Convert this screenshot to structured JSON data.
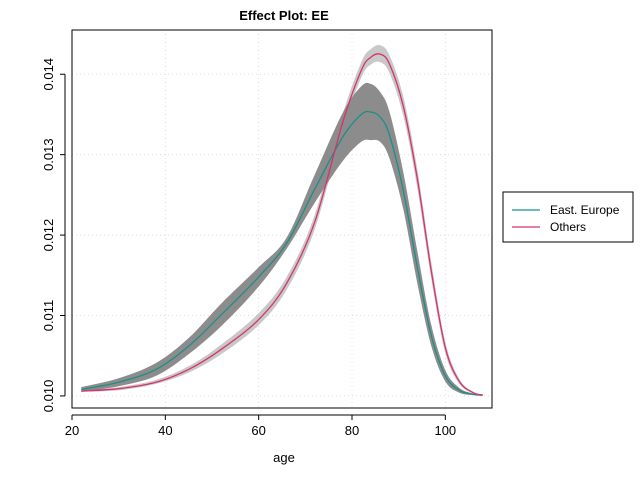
{
  "chart_data": {
    "type": "line",
    "title": "Effect Plot: EE",
    "xlabel": "age",
    "ylabel": "",
    "xlim": [
      20,
      110
    ],
    "ylim": [
      0.00985,
      0.01455
    ],
    "xticks": [
      20,
      40,
      60,
      80,
      100
    ],
    "yticks": [
      0.01,
      0.011,
      0.012,
      0.013,
      0.014
    ],
    "ytick_labels": [
      "0.010",
      "0.011",
      "0.012",
      "0.013",
      "0.014"
    ],
    "grid": true,
    "legend_position": "right",
    "series": [
      {
        "name": "East. Europe",
        "color": "#1a8f8a",
        "band_color": "#8c8c8c",
        "x": [
          22,
          30,
          38,
          45,
          52,
          60,
          66,
          72,
          78,
          82,
          84,
          86,
          88,
          91,
          94,
          97,
          100,
          103,
          106,
          108
        ],
        "y": [
          0.01008,
          0.01017,
          0.01033,
          0.01062,
          0.01101,
          0.01148,
          0.0119,
          0.01257,
          0.01322,
          0.0135,
          0.01353,
          0.01347,
          0.01325,
          0.01255,
          0.0116,
          0.01075,
          0.01025,
          0.01007,
          0.01002,
          0.01001
        ],
        "lower": [
          0.01005,
          0.01012,
          0.01025,
          0.01052,
          0.01087,
          0.01136,
          0.01183,
          0.0124,
          0.01292,
          0.01316,
          0.01318,
          0.01316,
          0.01296,
          0.01232,
          0.0114,
          0.01062,
          0.01018,
          0.01004,
          0.01001,
          0.01
        ],
        "upper": [
          0.01011,
          0.01022,
          0.01041,
          0.01072,
          0.01115,
          0.0116,
          0.01197,
          0.01275,
          0.01352,
          0.01385,
          0.01388,
          0.01378,
          0.01354,
          0.01278,
          0.0118,
          0.01088,
          0.01032,
          0.0101,
          0.01003,
          0.01002
        ]
      },
      {
        "name": "Others",
        "color": "#d6336c",
        "band_color": "#c8c8c8",
        "x": [
          22,
          30,
          38,
          45,
          52,
          60,
          66,
          72,
          78,
          82,
          84,
          86,
          88,
          91,
          94,
          97,
          100,
          103,
          106,
          108
        ],
        "y": [
          0.01006,
          0.01009,
          0.01017,
          0.01033,
          0.01058,
          0.01095,
          0.0114,
          0.01216,
          0.0134,
          0.01405,
          0.01421,
          0.01425,
          0.01413,
          0.0136,
          0.0127,
          0.01155,
          0.0106,
          0.01018,
          0.01004,
          0.01001
        ],
        "lower": [
          0.01005,
          0.01007,
          0.01015,
          0.01029,
          0.01052,
          0.01088,
          0.01132,
          0.01207,
          0.01331,
          0.01396,
          0.01412,
          0.01415,
          0.01402,
          0.01348,
          0.01258,
          0.01145,
          0.01053,
          0.01015,
          0.01003,
          0.01
        ],
        "upper": [
          0.01007,
          0.01011,
          0.0102,
          0.01037,
          0.01064,
          0.01103,
          0.01148,
          0.01225,
          0.0135,
          0.01415,
          0.01431,
          0.01436,
          0.01424,
          0.01372,
          0.01282,
          0.01166,
          0.01067,
          0.01021,
          0.01005,
          0.01002
        ]
      }
    ]
  }
}
